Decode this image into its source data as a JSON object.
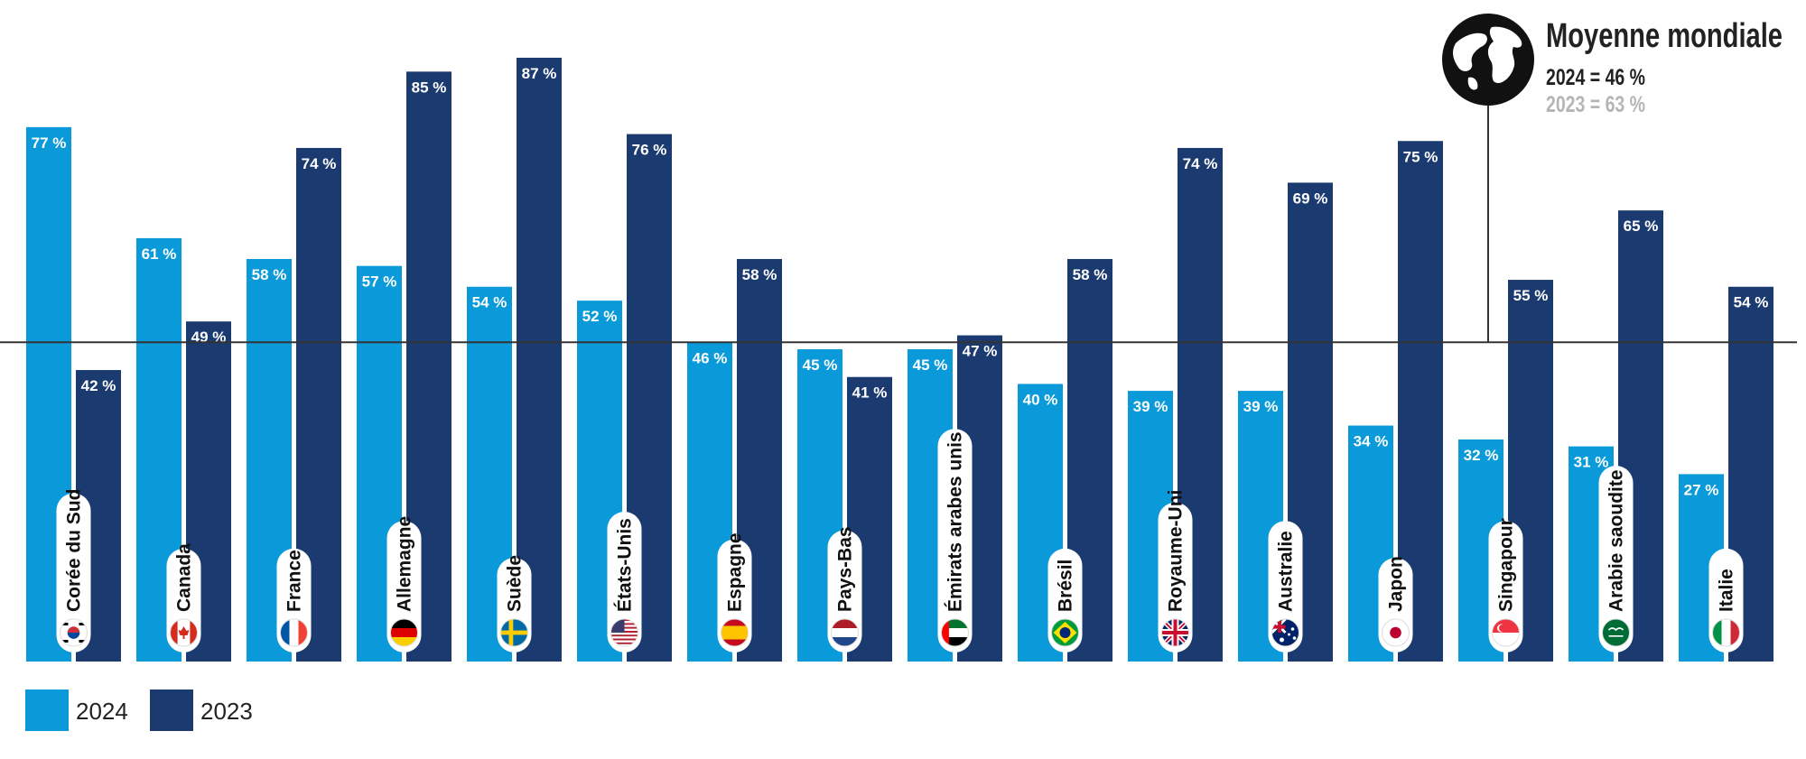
{
  "chart_data": {
    "type": "bar",
    "categories": [
      "Corée du Sud",
      "Canada",
      "France",
      "Allemagne",
      "Suède",
      "États-Unis",
      "Espagne",
      "Pays-Bas",
      "Émirats arabes unis",
      "Brésil",
      "Royaume-Uni",
      "Australie",
      "Japon",
      "Singapour",
      "Arabie saoudite",
      "Italie"
    ],
    "flags": [
      "flag-south-korea",
      "flag-canada",
      "flag-france",
      "flag-germany",
      "flag-sweden",
      "flag-usa",
      "flag-spain",
      "flag-netherlands",
      "flag-uae",
      "flag-brazil",
      "flag-uk",
      "flag-australia",
      "flag-japan",
      "flag-singapore",
      "flag-saudi-arabia",
      "flag-italy"
    ],
    "series": [
      {
        "name": "2024",
        "color": "#0a9ad9",
        "values": [
          77,
          61,
          58,
          57,
          54,
          52,
          46,
          45,
          45,
          40,
          39,
          39,
          34,
          32,
          31,
          27
        ]
      },
      {
        "name": "2023",
        "color": "#1b3b70",
        "values": [
          42,
          49,
          74,
          85,
          87,
          76,
          58,
          41,
          47,
          58,
          74,
          69,
          75,
          55,
          65,
          54
        ]
      }
    ],
    "value_labels": {
      "2024": [
        "77 %",
        "61 %",
        "58 %",
        "57 %",
        "54 %",
        "52 %",
        "46 %",
        "45 %",
        "45 %",
        "40 %",
        "39 %",
        "39 %",
        "34 %",
        "32 %",
        "31 %",
        "27 %"
      ],
      "2023": [
        "42 %",
        "49 %",
        "74 %",
        "85 %",
        "87 %",
        "76 %",
        "58 %",
        "41 %",
        "47 %",
        "58 %",
        "74 %",
        "69 %",
        "75 %",
        "55 %",
        "65 %",
        "54 %"
      ]
    },
    "ylim": [
      0,
      95
    ],
    "reference_line": {
      "value": 46
    },
    "legend": {
      "placement": "bottom-left",
      "entries": [
        "2024",
        "2023"
      ]
    },
    "grid": false
  },
  "global_average": {
    "title": "Moyenne mondiale",
    "line_2024": "2024 = 46 %",
    "line_2023": "2023 = 63 %",
    "icon": "globe-icon"
  },
  "colors": {
    "bar_2024": "#0a9ad9",
    "bar_2023": "#1b3b70",
    "reference_line": "#333333",
    "avg_2023_text": "#b5b5b5"
  }
}
